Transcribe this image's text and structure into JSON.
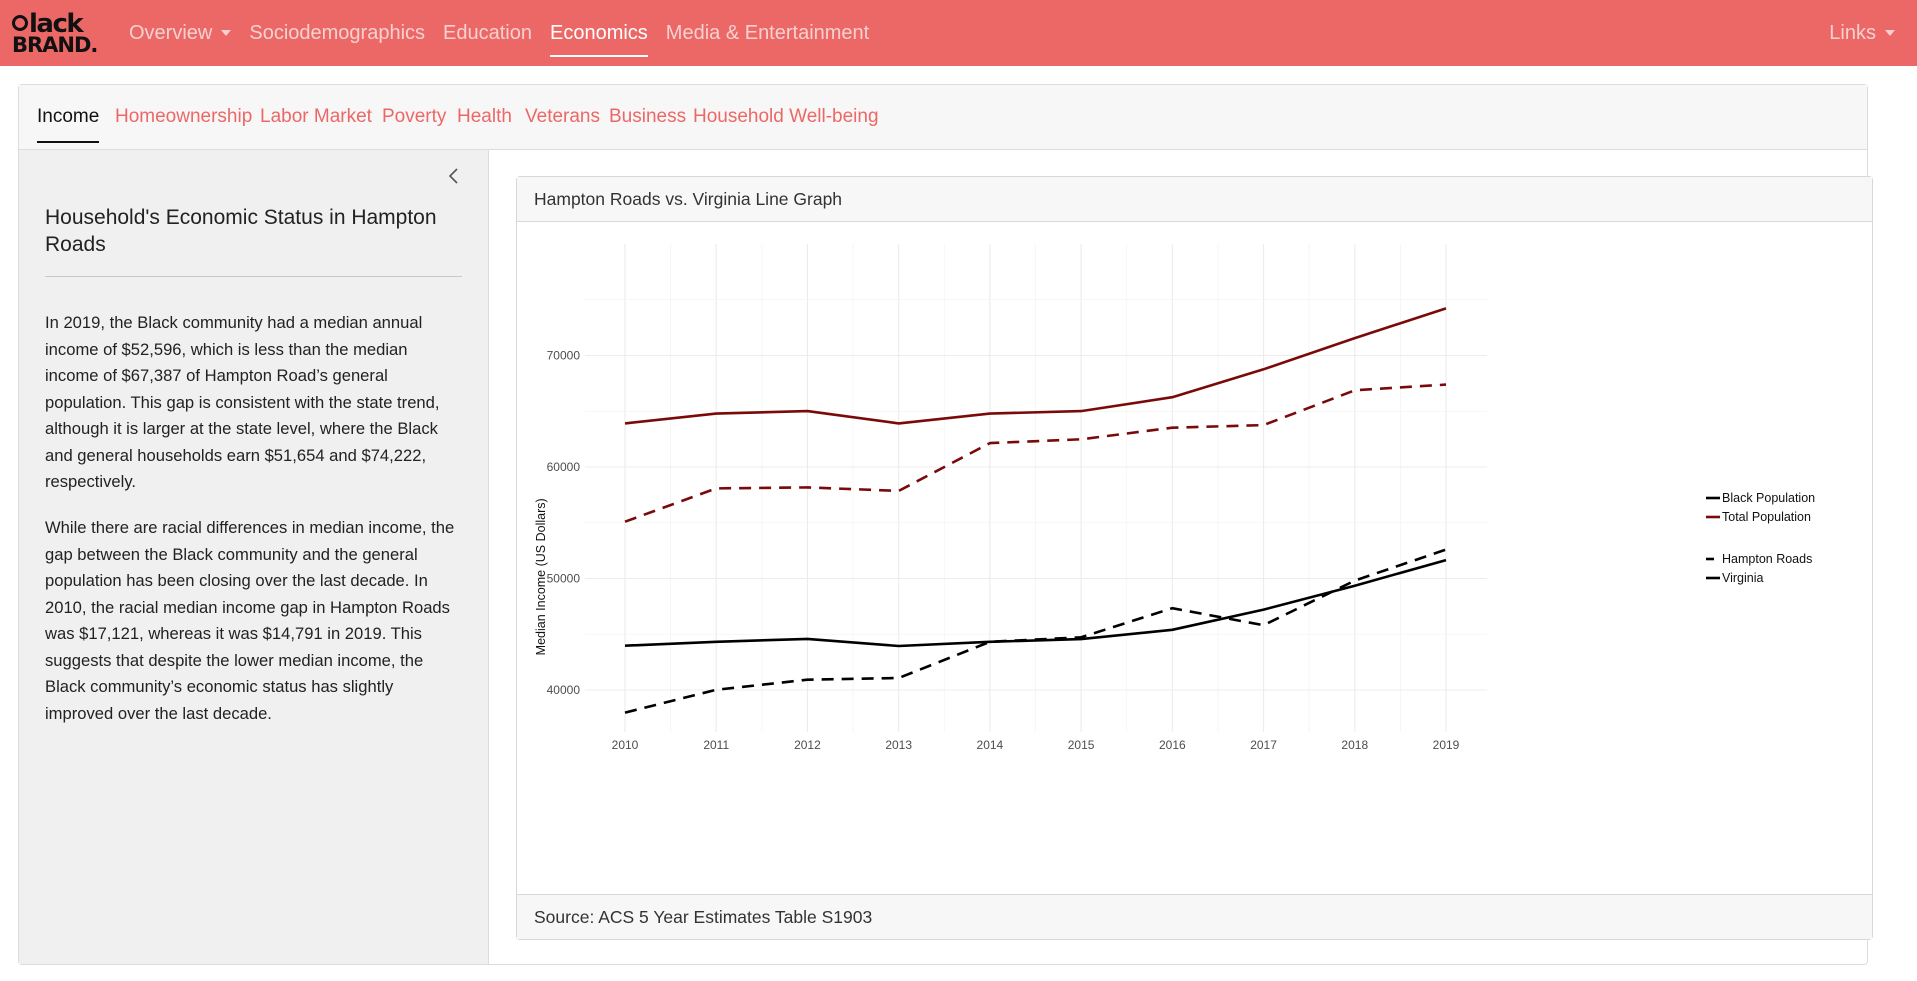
{
  "brand": {
    "logo_line1": "black",
    "logo_line2": "BRAND."
  },
  "nav": {
    "items": [
      {
        "label": "Overview",
        "dropdown": true,
        "active": false
      },
      {
        "label": "Sociodemographics",
        "active": false
      },
      {
        "label": "Education",
        "active": false
      },
      {
        "label": "Economics",
        "active": true
      },
      {
        "label": "Media & Entertainment",
        "active": false
      }
    ],
    "links_label": "Links"
  },
  "tabs": [
    {
      "label": "Income",
      "active": true
    },
    {
      "label": "Homeownership"
    },
    {
      "label": "Labor Market"
    },
    {
      "label": "Poverty"
    },
    {
      "label": "Health"
    },
    {
      "label": "Veterans"
    },
    {
      "label": "Business"
    },
    {
      "label": "Household Well-being"
    }
  ],
  "sidebar": {
    "title": "Household's Economic Status in Hampton Roads",
    "paragraph1": "In 2019, the Black community had a median annual income of $52,596, which is less than the median income of $67,387 of Hampton Road’s general population. This gap is consistent with the state trend, although it is larger at the state level, where the Black and general households earn $51,654 and $74,222, respectively.",
    "paragraph2": "While there are racial differences in median income, the gap between the Black community and the general population has been closing over the last decade. In 2010, the racial median income gap in Hampton Roads was $17,121, whereas it was $14,791 in 2019. This suggests that despite the lower median income, the Black community’s economic status has slightly improved over the last decade."
  },
  "panel": {
    "header": "Hampton Roads vs. Virginia Line Graph",
    "footer": "Source: ACS 5 Year Estimates Table S1903"
  },
  "colors": {
    "accent": "#ec6866",
    "black_pop": "#000000",
    "total_pop": "#7a0a0a"
  },
  "chart_data": {
    "type": "line",
    "title": "",
    "xlabel": "",
    "ylabel": "Median Income (US Dollars)",
    "x": [
      2010,
      2011,
      2012,
      2013,
      2014,
      2015,
      2016,
      2017,
      2018,
      2019
    ],
    "xticks": [
      "2010",
      "2011",
      "2012",
      "2013",
      "2014",
      "2015",
      "2016",
      "2017",
      "2018",
      "2019"
    ],
    "yticks": [
      "40000",
      "50000",
      "60000",
      "70000"
    ],
    "ylim": [
      35900,
      76100
    ],
    "grid": true,
    "legend_position": "right",
    "legend": {
      "population": [
        "Black Population",
        "Total Population"
      ],
      "region": [
        "Hampton Roads",
        "Virginia"
      ]
    },
    "series": [
      {
        "population": "Total Population",
        "region": "Virginia",
        "color": "#7a0a0a",
        "dash": "solid",
        "values": [
          63907,
          64792,
          65015,
          63907,
          64792,
          65015,
          66262,
          68766,
          71564,
          74222
        ]
      },
      {
        "population": "Total Population",
        "region": "Hampton Roads",
        "color": "#7a0a0a",
        "dash": "dashed",
        "values": [
          55094,
          58081,
          58166,
          57853,
          62143,
          62482,
          63523,
          63759,
          66878,
          67387
        ]
      },
      {
        "population": "Black Population",
        "region": "Virginia",
        "color": "#000000",
        "dash": "solid",
        "values": [
          43973,
          44323,
          44582,
          43950,
          44322,
          44565,
          45399,
          47209,
          49353,
          51654
        ]
      },
      {
        "population": "Black Population",
        "region": "Hampton Roads",
        "color": "#000000",
        "dash": "dashed",
        "values": [
          37973,
          40020,
          40924,
          41079,
          44322,
          44726,
          47339,
          45813,
          49815,
          52596
        ]
      }
    ]
  }
}
